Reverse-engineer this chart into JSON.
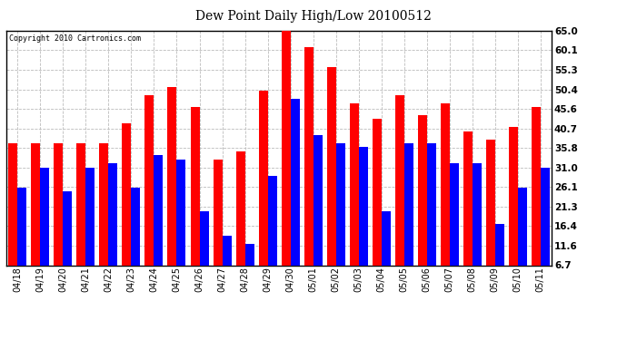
{
  "title": "Dew Point Daily High/Low 20100512",
  "copyright": "Copyright 2010 Cartronics.com",
  "dates": [
    "04/18",
    "04/19",
    "04/20",
    "04/21",
    "04/22",
    "04/23",
    "04/24",
    "04/25",
    "04/26",
    "04/27",
    "04/28",
    "04/29",
    "04/30",
    "05/01",
    "05/02",
    "05/03",
    "05/04",
    "05/05",
    "05/06",
    "05/07",
    "05/08",
    "05/09",
    "05/10",
    "05/11"
  ],
  "highs": [
    37,
    37,
    37,
    37,
    37,
    42,
    49,
    51,
    46,
    33,
    35,
    50,
    65,
    61,
    56,
    47,
    43,
    49,
    44,
    47,
    40,
    38,
    41,
    46
  ],
  "lows": [
    26,
    31,
    25,
    31,
    32,
    26,
    34,
    33,
    20,
    14,
    12,
    29,
    48,
    39,
    37,
    36,
    20,
    37,
    37,
    32,
    32,
    17,
    26,
    31
  ],
  "ylim": [
    6.7,
    65.0
  ],
  "yticks": [
    6.7,
    11.6,
    16.4,
    21.3,
    26.1,
    31.0,
    35.8,
    40.7,
    45.6,
    50.4,
    55.3,
    60.1,
    65.0
  ],
  "high_color": "#ff0000",
  "low_color": "#0000ff",
  "bg_color": "#ffffff",
  "grid_color": "#bbbbbb",
  "bar_width": 0.4
}
